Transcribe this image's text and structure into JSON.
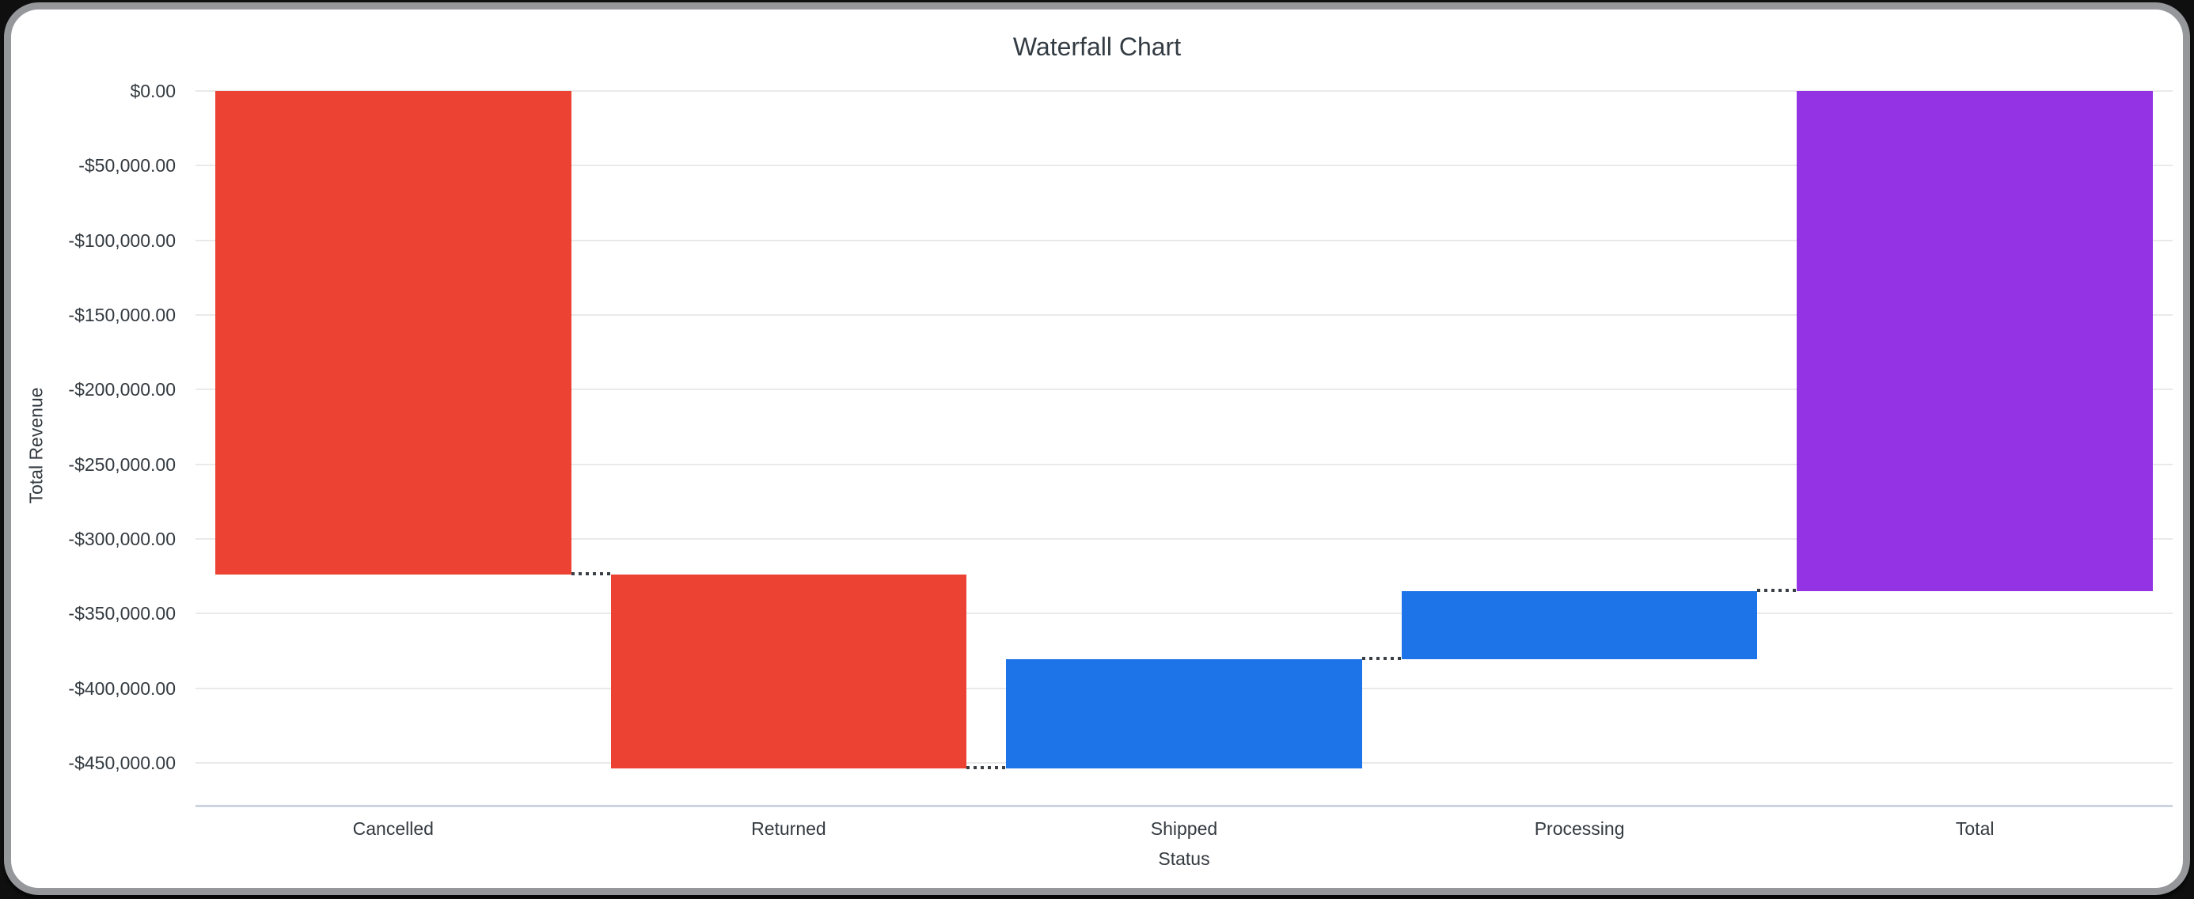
{
  "chart_data": {
    "type": "bar",
    "subtype": "waterfall",
    "title": "Waterfall Chart",
    "xlabel": "Status",
    "ylabel": "Total Revenue",
    "categories": [
      "Cancelled",
      "Returned",
      "Shipped",
      "Processing",
      "Total"
    ],
    "bars": [
      {
        "label": "Cancelled",
        "start": 0,
        "end": -324000,
        "kind": "decrease"
      },
      {
        "label": "Returned",
        "start": -324000,
        "end": -453400,
        "kind": "decrease"
      },
      {
        "label": "Shipped",
        "start": -453400,
        "end": -380600,
        "kind": "increase"
      },
      {
        "label": "Processing",
        "start": -380600,
        "end": -335000,
        "kind": "increase"
      },
      {
        "label": "Total",
        "start": 0,
        "end": -335000,
        "kind": "total"
      }
    ],
    "colors": {
      "decrease": "#ec4234",
      "increase": "#1d73e8",
      "total": "#9333e3"
    },
    "connector_color": "#3a4046",
    "y_ticks": [
      {
        "value": 0,
        "label": "$0.00"
      },
      {
        "value": -50000,
        "label": "-$50,000.00"
      },
      {
        "value": -100000,
        "label": "-$100,000.00"
      },
      {
        "value": -150000,
        "label": "-$150,000.00"
      },
      {
        "value": -200000,
        "label": "-$200,000.00"
      },
      {
        "value": -250000,
        "label": "-$250,000.00"
      },
      {
        "value": -300000,
        "label": "-$300,000.00"
      },
      {
        "value": -350000,
        "label": "-$350,000.00"
      },
      {
        "value": -400000,
        "label": "-$400,000.00"
      },
      {
        "value": -450000,
        "label": "-$450,000.00"
      }
    ],
    "ylim": [
      -478000,
      0
    ],
    "grid": true,
    "legend": false
  }
}
